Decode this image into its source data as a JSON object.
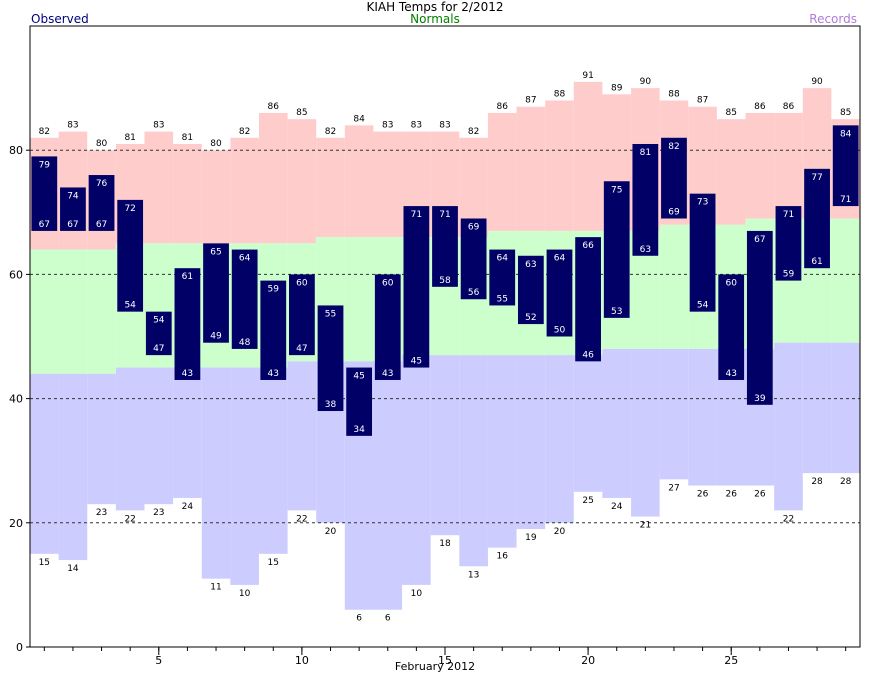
{
  "title": "KIAH Temps for 2/2012",
  "legend": {
    "observed": "Observed",
    "normals": "Normals",
    "records": "Records"
  },
  "colors": {
    "observed_bar": "#000066",
    "record_band": "#ffcccc",
    "normal_band": "#ccffcc",
    "record_low_band": "#ccccff",
    "observed_text": "#000080",
    "normals_text": "#008000",
    "records_text": "#b07cd8"
  },
  "chart_data": {
    "type": "bar",
    "xlabel": "February 2012",
    "ylabel": "",
    "xlim": [
      0.5,
      29.5
    ],
    "ylim": [
      0,
      100
    ],
    "x_ticks": [
      5,
      10,
      15,
      20,
      25
    ],
    "y_ticks": [
      0,
      20,
      40,
      60,
      80
    ],
    "grid_y": [
      20,
      40,
      60,
      80
    ],
    "days": [
      1,
      2,
      3,
      4,
      5,
      6,
      7,
      8,
      9,
      10,
      11,
      12,
      13,
      14,
      15,
      16,
      17,
      18,
      19,
      20,
      21,
      22,
      23,
      24,
      25,
      26,
      27,
      28,
      29
    ],
    "series": [
      {
        "name": "Observed",
        "values_high": [
          79,
          74,
          76,
          72,
          54,
          61,
          65,
          64,
          59,
          60,
          55,
          45,
          60,
          71,
          71,
          69,
          64,
          63,
          64,
          66,
          75,
          81,
          82,
          73,
          60,
          67,
          71,
          77,
          84
        ],
        "values_low": [
          67,
          67,
          67,
          54,
          47,
          43,
          49,
          48,
          43,
          47,
          38,
          34,
          43,
          45,
          58,
          56,
          55,
          52,
          50,
          46,
          53,
          63,
          69,
          54,
          43,
          39,
          59,
          61,
          71
        ]
      },
      {
        "name": "Normals",
        "values_high": [
          64,
          64,
          64,
          65,
          65,
          65,
          65,
          65,
          65,
          65,
          66,
          66,
          66,
          66,
          66,
          66,
          67,
          67,
          67,
          67,
          67,
          67,
          68,
          68,
          68,
          69,
          69,
          69,
          69
        ],
        "values_low": [
          44,
          44,
          44,
          45,
          45,
          45,
          45,
          45,
          45,
          46,
          46,
          46,
          46,
          47,
          47,
          47,
          47,
          47,
          47,
          47,
          48,
          48,
          48,
          48,
          48,
          48,
          49,
          49,
          49
        ]
      },
      {
        "name": "Records",
        "values_high": [
          82,
          83,
          80,
          81,
          83,
          81,
          80,
          82,
          86,
          85,
          82,
          84,
          83,
          83,
          83,
          82,
          86,
          87,
          88,
          91,
          89,
          90,
          88,
          87,
          85,
          86,
          86,
          90,
          85
        ],
        "values_low": [
          15,
          14,
          23,
          22,
          23,
          24,
          11,
          10,
          15,
          22,
          20,
          6,
          6,
          10,
          18,
          13,
          16,
          19,
          20,
          25,
          24,
          21,
          27,
          26,
          26,
          26,
          22,
          28,
          28
        ]
      }
    ]
  }
}
